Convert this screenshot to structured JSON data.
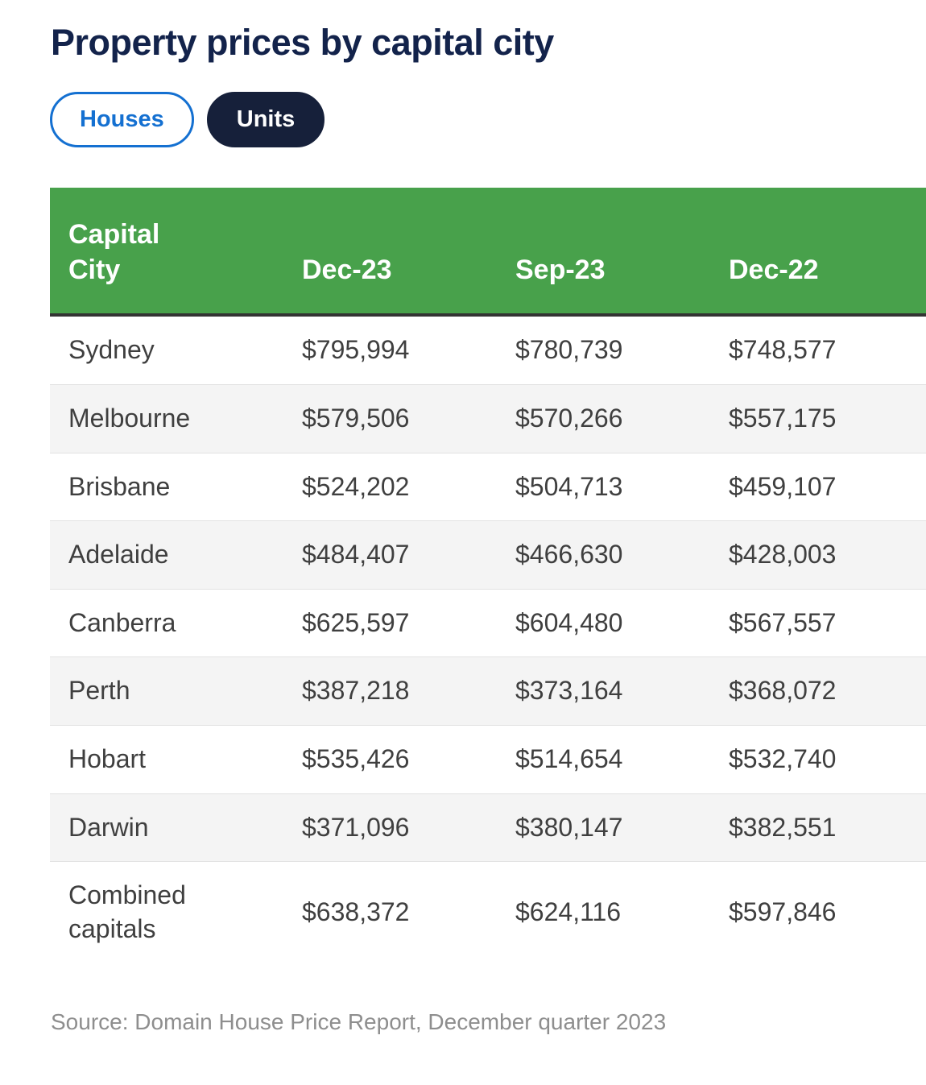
{
  "page": {
    "title": "Property prices by capital city",
    "source_note": "Source: Domain House Price Report, December quarter 2023"
  },
  "toggle": {
    "houses_label": "Houses",
    "units_label": "Units",
    "selected": "Units"
  },
  "colors": {
    "header_green": "#48a14b",
    "title_navy": "#13234b",
    "units_pill_bg": "#16203a",
    "houses_blue": "#1470d1",
    "header_underline": "#333333",
    "row_stripe": "#f4f4f4",
    "cell_text": "#3f3f3f",
    "source_text": "#8e8e8e"
  },
  "chart_data": {
    "type": "table",
    "title": "Property prices by capital city",
    "columns": [
      "Capital City",
      "Dec-23",
      "Sep-23",
      "Dec-22"
    ],
    "rows": [
      [
        "Sydney",
        "$795,994",
        "$780,739",
        "$748,577"
      ],
      [
        "Melbourne",
        "$579,506",
        "$570,266",
        "$557,175"
      ],
      [
        "Brisbane",
        "$524,202",
        "$504,713",
        "$459,107"
      ],
      [
        "Adelaide",
        "$484,407",
        "$466,630",
        "$428,003"
      ],
      [
        "Canberra",
        "$625,597",
        "$604,480",
        "$567,557"
      ],
      [
        "Perth",
        "$387,218",
        "$373,164",
        "$368,072"
      ],
      [
        "Hobart",
        "$535,426",
        "$514,654",
        "$532,740"
      ],
      [
        "Darwin",
        "$371,096",
        "$380,147",
        "$382,551"
      ],
      [
        "Combined capitals",
        "$638,372",
        "$624,116",
        "$597,846"
      ]
    ]
  }
}
